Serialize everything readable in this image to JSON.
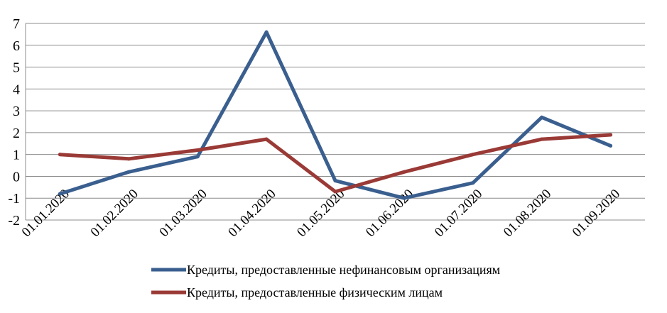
{
  "chart_data": {
    "type": "line",
    "categories": [
      "01.01.2020",
      "01.02.2020",
      "01.03.2020",
      "01.04.2020",
      "01.05.2020",
      "01.06.2020",
      "01.07.2020",
      "01.08.2020",
      "01.09.2020"
    ],
    "series": [
      {
        "name": "Кредиты, предоставленные нефинансовым организациям",
        "color": "#3a5f8f",
        "values": [
          -0.8,
          0.2,
          0.9,
          6.6,
          -0.2,
          -1.0,
          -0.3,
          2.7,
          1.4
        ]
      },
      {
        "name": "Кредиты, предоставленные физическим лицам",
        "color": "#9a3a36",
        "values": [
          1.0,
          0.8,
          1.2,
          1.7,
          -0.7,
          0.2,
          1.0,
          1.7,
          1.9
        ]
      }
    ],
    "ylim": [
      -2,
      7
    ],
    "yticks": [
      "7",
      "6",
      "5",
      "4",
      "3",
      "2",
      "1",
      "0",
      "-1",
      "-2"
    ],
    "grid": true,
    "legend_position": "bottom"
  }
}
